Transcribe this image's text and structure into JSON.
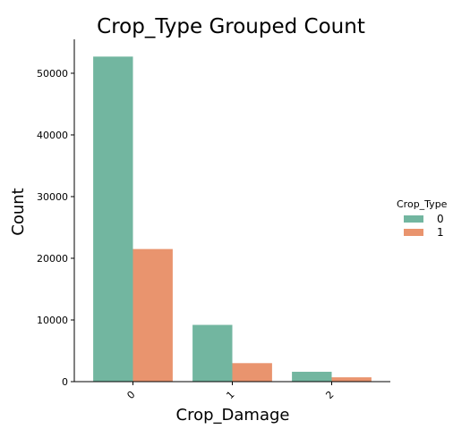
{
  "chart_data": {
    "type": "bar",
    "title": "Crop_Type Grouped Count",
    "xlabel": "Crop_Damage",
    "ylabel": "Count",
    "categories": [
      "0",
      "1",
      "2"
    ],
    "series": [
      {
        "name": "0",
        "values": [
          52700,
          9200,
          1600
        ]
      },
      {
        "name": "1",
        "values": [
          21500,
          3000,
          700
        ]
      }
    ],
    "ylim": [
      0,
      55500
    ],
    "yticks": [
      0,
      10000,
      20000,
      30000,
      40000,
      50000
    ],
    "ytick_labels": [
      "0",
      "10000",
      "20000",
      "30000",
      "40000",
      "50000"
    ],
    "legend": {
      "title": "Crop_Type",
      "placement": "right"
    },
    "colors": [
      "#72b6a0",
      "#e9946e"
    ],
    "grid": false
  }
}
